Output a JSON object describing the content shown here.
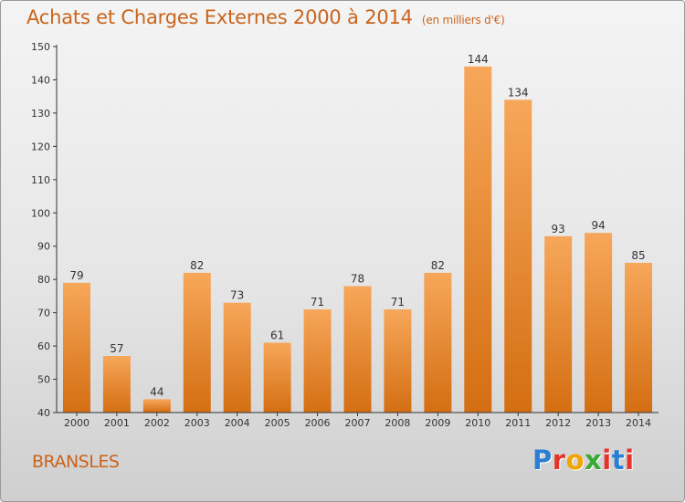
{
  "title": "Achats et Charges Externes 2000 à 2014",
  "subtitle": "(en milliers d'€)",
  "location": "BRANSLES",
  "logo": {
    "letters": [
      "P",
      "r",
      "o",
      "x",
      "i",
      "t",
      "i"
    ],
    "colors": [
      "#2a7fd4",
      "#e6332a",
      "#f0a500",
      "#3aa935",
      "#e6332a",
      "#2a7fd4",
      "#e6332a"
    ]
  },
  "colors": {
    "bar": "#f0861f",
    "bar_light": "#f7a75a",
    "bar_dark": "#d46e12",
    "title": "#c9641c",
    "axis": "#333333"
  },
  "chart_data": {
    "type": "bar",
    "categories": [
      "2000",
      "2001",
      "2002",
      "2003",
      "2004",
      "2005",
      "2006",
      "2007",
      "2008",
      "2009",
      "2010",
      "2011",
      "2012",
      "2013",
      "2014"
    ],
    "values": [
      79,
      57,
      44,
      82,
      73,
      61,
      71,
      78,
      71,
      82,
      144,
      134,
      93,
      94,
      85
    ],
    "ylim": [
      40,
      150
    ],
    "yticks": [
      40,
      50,
      60,
      70,
      80,
      90,
      100,
      110,
      120,
      130,
      140,
      150
    ],
    "grid": false,
    "data_labels": true
  }
}
